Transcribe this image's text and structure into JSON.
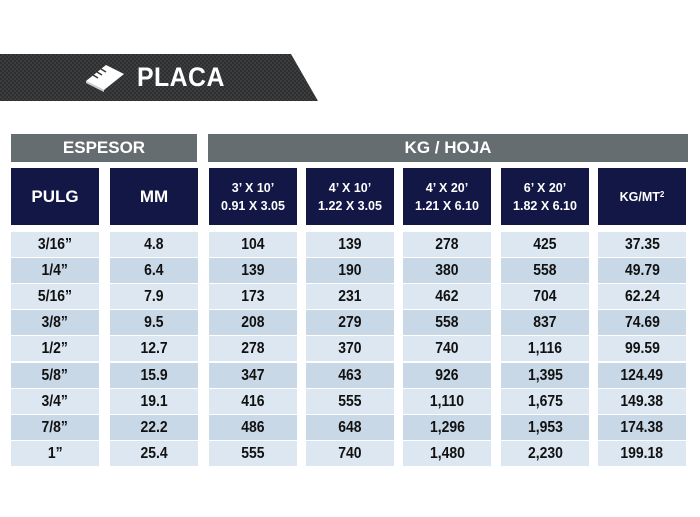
{
  "title": "PLACA",
  "groups": {
    "espesor": "ESPESOR",
    "kg_hoja": "KG / HOJA"
  },
  "headers": {
    "pulg": "PULG",
    "mm": "MM",
    "s1_line1": "3’ X 10’",
    "s1_line2": "0.91 X 3.05",
    "s2_line1": "4’ X 10’",
    "s2_line2": "1.22 X 3.05",
    "s3_line1": "4’ X 20’",
    "s3_line2": "1.21 X 6.10",
    "s4_line1": "6’ X 20’",
    "s4_line2": "1.82 X 6.10",
    "kgmt": "KG/MT",
    "kgmt_sup": "2"
  },
  "rows": [
    [
      "3/16”",
      "4.8",
      "104",
      "139",
      "278",
      "425",
      "37.35"
    ],
    [
      "1/4”",
      "6.4",
      "139",
      "190",
      "380",
      "558",
      "49.79"
    ],
    [
      "5/16”",
      "7.9",
      "173",
      "231",
      "462",
      "704",
      "62.24"
    ],
    [
      "3/8”",
      "9.5",
      "208",
      "279",
      "558",
      "837",
      "74.69"
    ],
    [
      "1/2”",
      "12.7",
      "278",
      "370",
      "740",
      "1,116",
      "99.59"
    ],
    [
      "5/8”",
      "15.9",
      "347",
      "463",
      "926",
      "1,395",
      "124.49"
    ],
    [
      "3/4”",
      "19.1",
      "416",
      "555",
      "1,110",
      "1,675",
      "149.38"
    ],
    [
      "7/8”",
      "22.2",
      "486",
      "648",
      "1,296",
      "1,953",
      "174.38"
    ],
    [
      "1”",
      "25.4",
      "555",
      "740",
      "1,480",
      "2,230",
      "199.18"
    ]
  ],
  "colors": {
    "banner": "#3a3a3a",
    "group": "#666d71",
    "header": "#131746",
    "row_light": "#dce7f1",
    "row_dark": "#c9d8e7"
  },
  "icon": "ruler-icon"
}
